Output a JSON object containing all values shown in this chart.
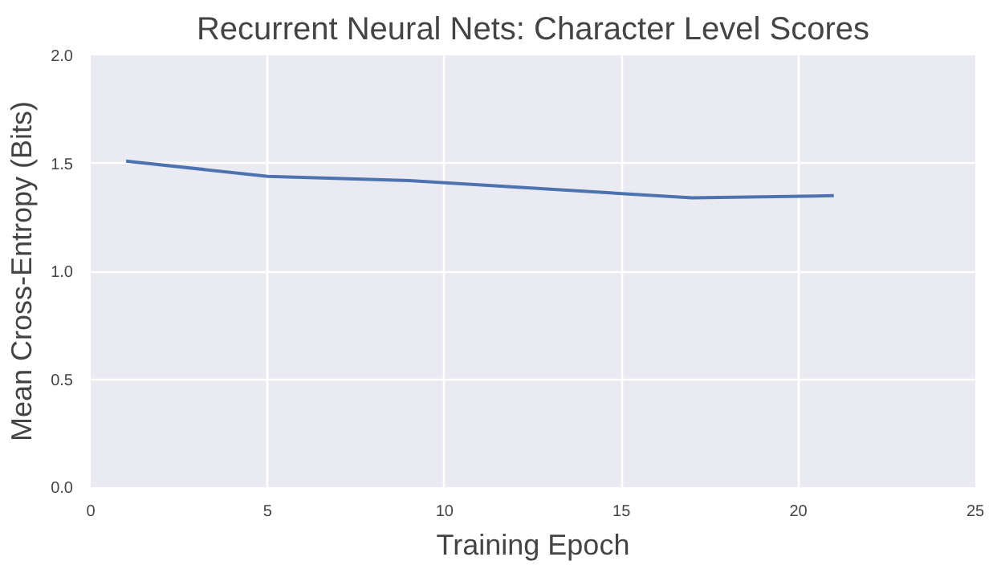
{
  "chart_data": {
    "type": "line",
    "title": "Recurrent Neural Nets: Character Level Scores",
    "xlabel": "Training Epoch",
    "ylabel": "Mean Cross-Entropy (Bits)",
    "x": [
      1,
      5,
      9,
      13,
      17,
      21
    ],
    "series": [
      {
        "color": "#4c72b0",
        "values": [
          1.51,
          1.44,
          1.42,
          1.38,
          1.34,
          1.35
        ]
      }
    ],
    "xlim": [
      0,
      25
    ],
    "xticks": [
      0,
      5,
      10,
      15,
      20,
      25
    ],
    "ylim": [
      0,
      2
    ],
    "yticks": [
      {
        "value": 0,
        "label": "0.0"
      },
      {
        "value": 0.5,
        "label": "0.5"
      },
      {
        "value": 1,
        "label": "1.0"
      },
      {
        "value": 1.5,
        "label": "1.5"
      },
      {
        "value": 2,
        "label": "2.0"
      }
    ],
    "grid": true
  }
}
